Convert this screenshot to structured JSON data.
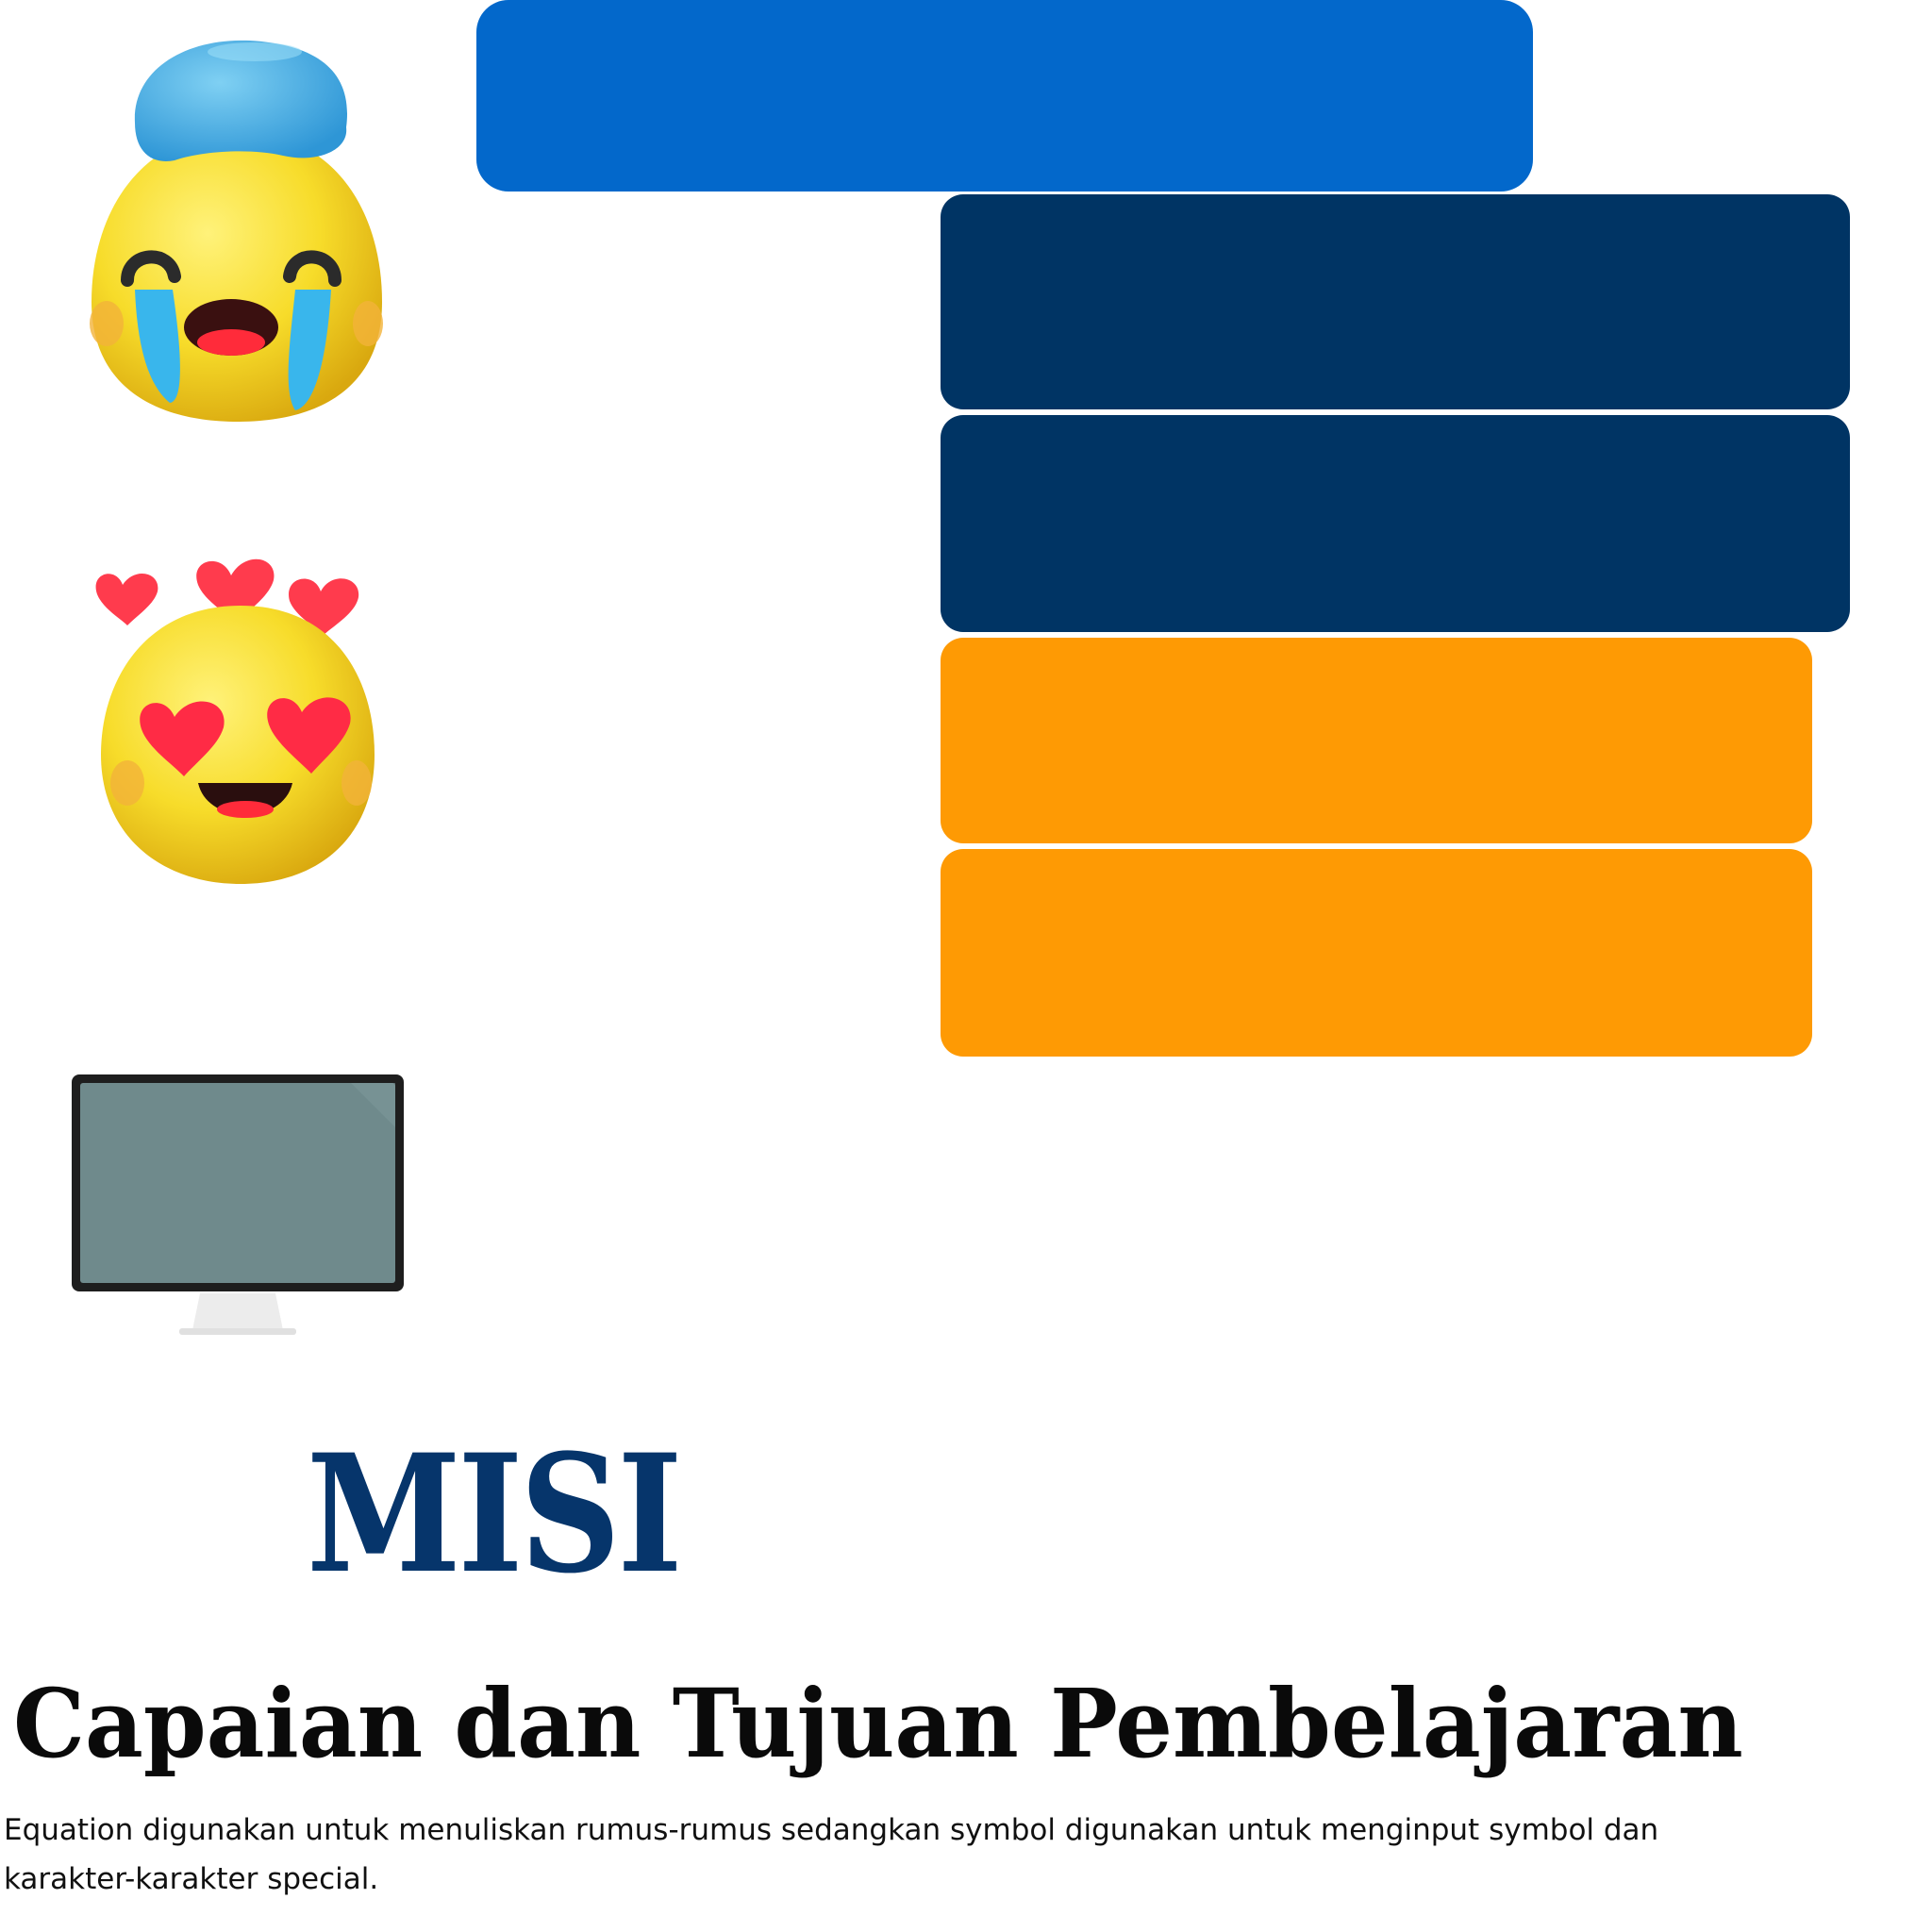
{
  "colors": {
    "blue": "#0368cb",
    "navy": "#003464",
    "orange": "#fe9a04",
    "misi": "#06356b"
  },
  "illustrations": {
    "emoji_1": "crying-face-with-cap-icon",
    "emoji_2": "heart-eyes-face-icon",
    "device": "monitor-icon"
  },
  "heading": {
    "misi": "MISI",
    "title": "Capaian dan Tujuan Pembelajaran"
  },
  "body": {
    "description": "Equation digunakan untuk menuliskan rumus-rumus sedangkan symbol digunakan untuk menginput symbol dan karakter-karakter special."
  }
}
